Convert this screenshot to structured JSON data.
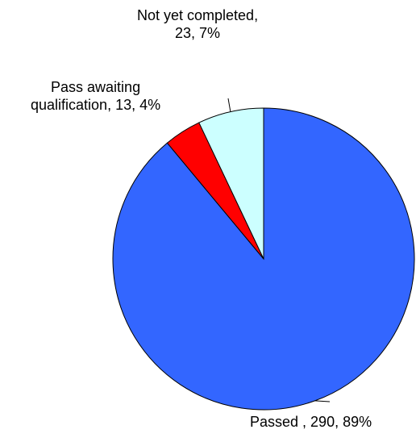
{
  "chart_data": {
    "type": "pie",
    "title": "",
    "start_angle_deg": 0,
    "direction": "clockwise",
    "slices": [
      {
        "name": "Passed",
        "value": 290,
        "percent": "89%",
        "color": "#3366FF",
        "label_lines": [
          "Passed , 290, 89%"
        ]
      },
      {
        "name": "Pass awaiting qualification",
        "value": 13,
        "percent": "4%",
        "color": "#FF0000",
        "label_lines": [
          "Pass awaiting",
          "qualification, 13, 4%"
        ]
      },
      {
        "name": "Not yet completed",
        "value": 23,
        "percent": "7%",
        "color": "#CCFFFF",
        "label_lines": [
          "Not yet completed,",
          "23, 7%"
        ]
      }
    ]
  }
}
